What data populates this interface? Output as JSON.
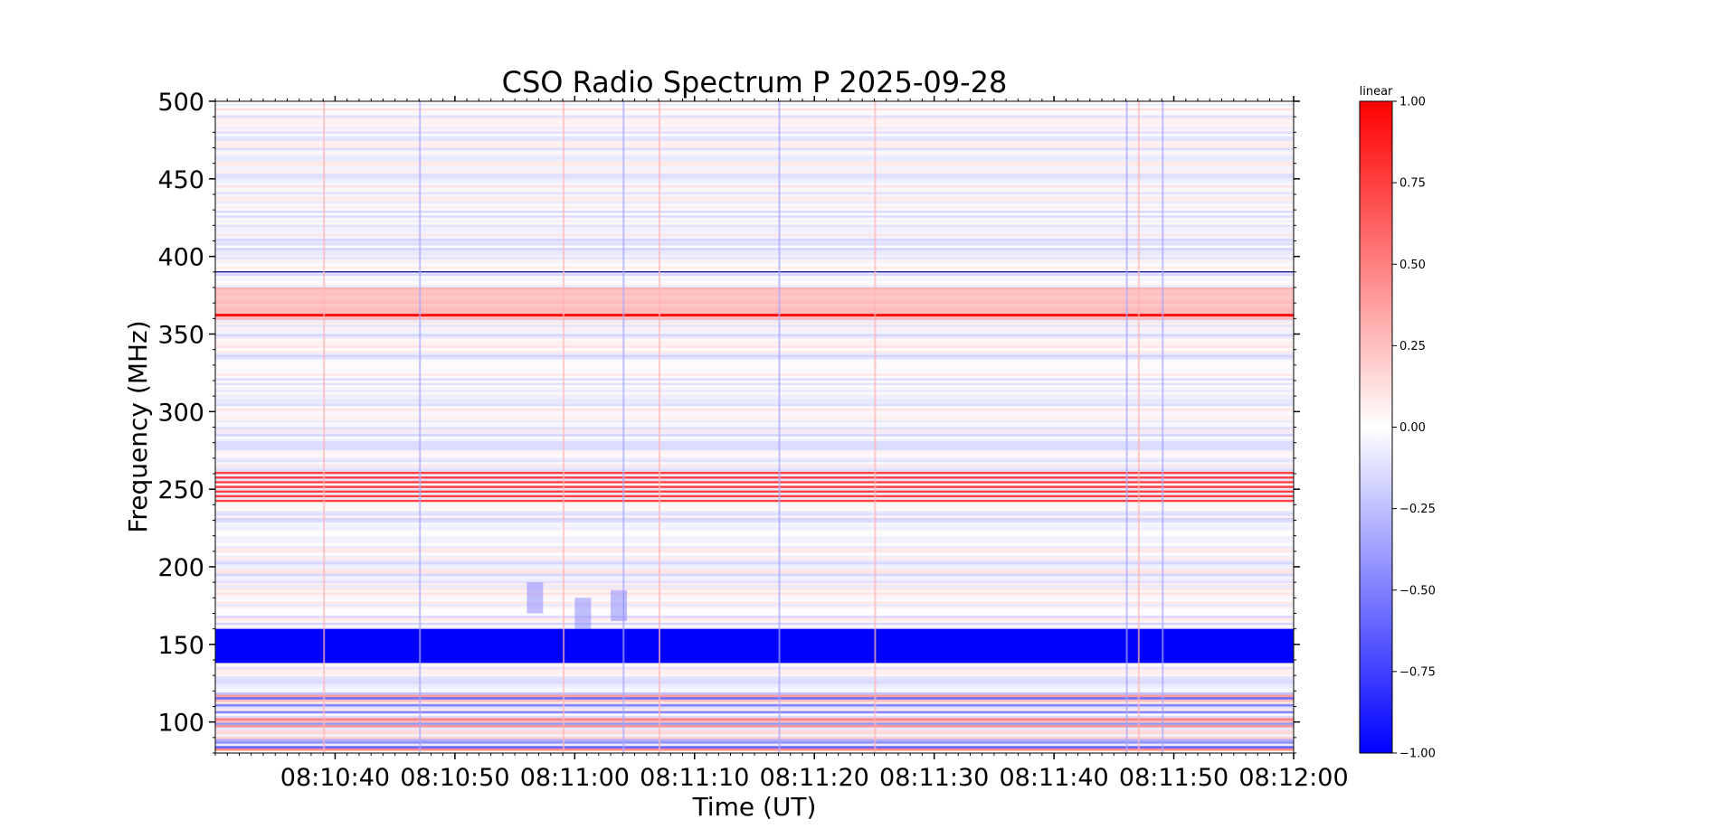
{
  "chart_data": {
    "type": "heatmap",
    "title": "CSO Radio Spectrum P 2025-09-28",
    "xlabel": "Time (UT)",
    "ylabel": "Frequency (MHz)",
    "x_tick_labels": [
      "08:10:40",
      "08:10:50",
      "08:11:00",
      "08:11:10",
      "08:11:20",
      "08:11:30",
      "08:11:40",
      "08:11:50",
      "08:12:00"
    ],
    "x_tick_seconds": [
      40,
      50,
      60,
      70,
      80,
      90,
      100,
      110,
      120
    ],
    "xlim_seconds": [
      30,
      120
    ],
    "x_origin": "08:10:00",
    "y_ticks": [
      100,
      150,
      200,
      250,
      300,
      350,
      400,
      450,
      500
    ],
    "y_tick_labels": [
      "100",
      "150",
      "200",
      "250",
      "300",
      "350",
      "400",
      "450",
      "500"
    ],
    "ylim": [
      80,
      500
    ],
    "colorbar": {
      "label": "linear",
      "range": [
        -1.0,
        1.0
      ],
      "ticks": [
        1.0,
        0.75,
        0.5,
        0.25,
        0.0,
        -0.25,
        -0.5,
        -0.75,
        -1.0
      ],
      "tick_labels": [
        "1.00",
        "0.75",
        "0.50",
        "0.25",
        "0.00",
        "−0.25",
        "−0.50",
        "−0.75",
        "−1.00"
      ],
      "colormap": "bwr",
      "colors": {
        "low": "#0000ff",
        "mid": "#ffffff",
        "high": "#ff0000"
      }
    },
    "features": {
      "strong_negative_band_mhz": [
        138,
        160
      ],
      "strong_positive_bands_mhz": [
        [
          242,
          260
        ]
      ],
      "positive_line_mhz": 362,
      "positive_band_mhz": [
        360,
        380
      ],
      "negative_line_mhz": 390,
      "mixed_low_band_mhz": [
        80,
        120
      ],
      "burst_times_seconds": [
        39,
        47,
        59,
        64,
        67,
        77,
        85,
        106,
        107,
        109
      ]
    }
  }
}
